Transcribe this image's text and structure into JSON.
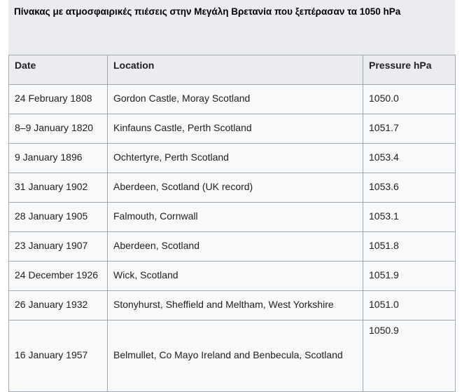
{
  "caption": "Πίνακας  με ατμοσφαιρικές πιέσεις στην Μεγάλη Βρετανία που ξεπέρασαν τα 1050 hPa",
  "table": {
    "headers": [
      "Date",
      "Location",
      "Pressure hPa"
    ],
    "rows": [
      [
        "24 February 1808",
        "Gordon Castle, Moray Scotland",
        "1050.0"
      ],
      [
        "8–9 January 1820",
        "Kinfauns Castle, Perth Scotland",
        "1051.7"
      ],
      [
        "9 January 1896",
        "Ochtertyre, Perth Scotland",
        "1053.4"
      ],
      [
        "31 January 1902",
        "Aberdeen, Scotland (UK record)",
        "1053.6"
      ],
      [
        "28 January 1905",
        "Falmouth, Cornwall",
        "1053.1"
      ],
      [
        "23 January 1907",
        "Aberdeen, Scotland",
        "1051.8"
      ],
      [
        "24 December 1926",
        "Wick, Scotland",
        "1051.9"
      ],
      [
        "26 January 1932",
        "Stonyhurst, Sheffield and Meltham, West Yorkshire",
        "1051.0"
      ],
      [
        "16 January 1957",
        "Belmullet, Co Mayo Ireland and Benbecula, Scotland",
        "1050.9"
      ]
    ]
  }
}
